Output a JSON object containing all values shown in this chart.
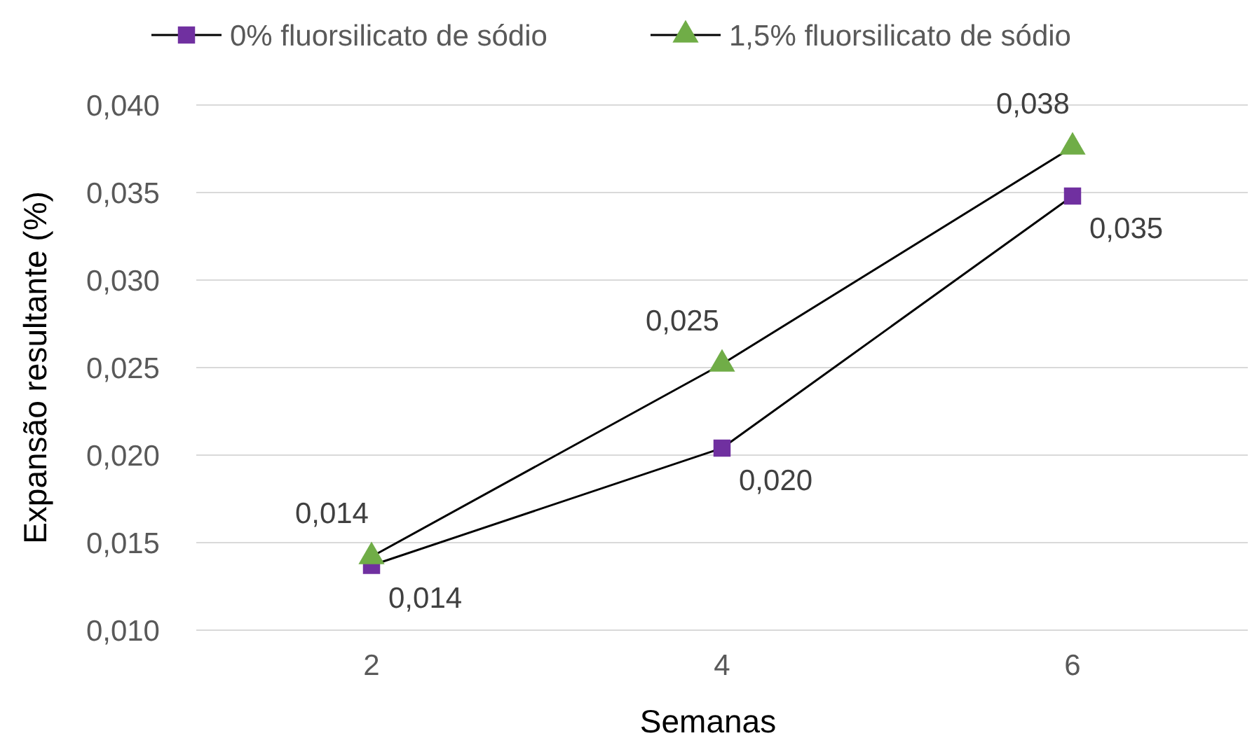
{
  "chart_data": {
    "type": "line",
    "xlabel": "Semanas",
    "ylabel": "Expansão resultante (%)",
    "categories": [
      "2",
      "4",
      "6"
    ],
    "series": [
      {
        "name": "0% fluorsilicato de sódio",
        "color": "#7030a0",
        "marker": "square",
        "values": [
          0.0137,
          0.0204,
          0.0348
        ],
        "value_labels": [
          "0,014",
          "0,020",
          "0,035"
        ]
      },
      {
        "name": "1,5% fluorsilicato de sódio",
        "color": "#70ad47",
        "marker": "triangle",
        "values": [
          0.0142,
          0.0252,
          0.0376
        ],
        "value_labels": [
          "0,014",
          "0,025",
          "0,038"
        ]
      }
    ],
    "ylim": [
      0.01,
      0.04
    ],
    "yticks": [
      {
        "value": 0.01,
        "label": "0,010"
      },
      {
        "value": 0.015,
        "label": "0,015"
      },
      {
        "value": 0.02,
        "label": "0,020"
      },
      {
        "value": 0.025,
        "label": "0,025"
      },
      {
        "value": 0.03,
        "label": "0,030"
      },
      {
        "value": 0.035,
        "label": "0,035"
      },
      {
        "value": 0.04,
        "label": "0,040"
      }
    ],
    "grid": "y",
    "legend": "top"
  }
}
